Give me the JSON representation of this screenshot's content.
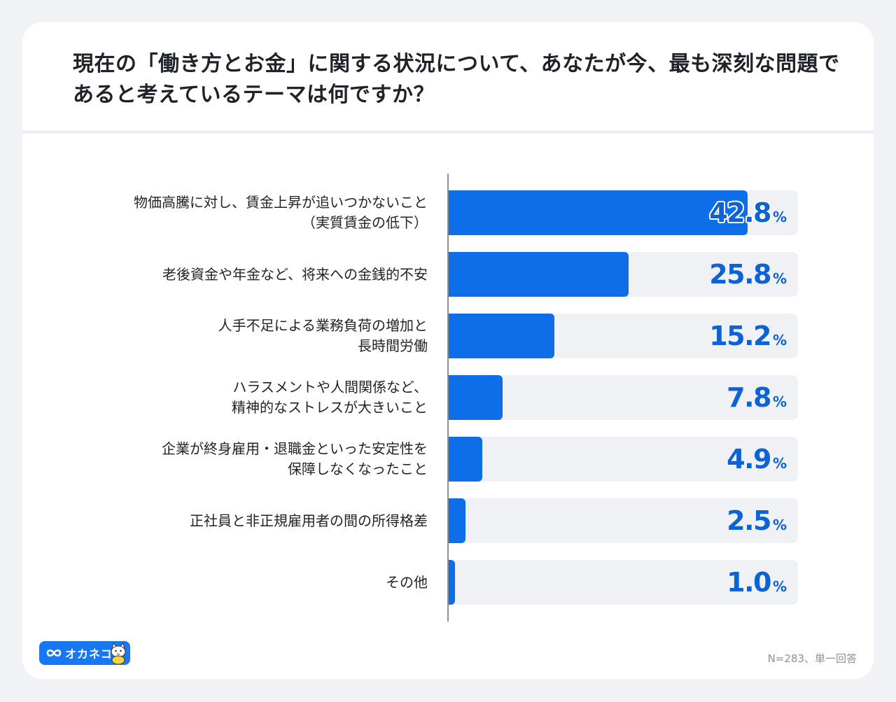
{
  "title": "現在の「働き方とお金」に関する状況について、あなたが今、最も深刻な問題であると考えているテーマは何ですか？",
  "chart_data": {
    "type": "bar",
    "orientation": "horizontal",
    "categories": [
      [
        "物価高騰に対し、賃金上昇が追いつかないこと",
        "（実質賃金の低下）"
      ],
      [
        "老後資金や年金など、将来への金銭的不安"
      ],
      [
        "人手不足による業務負荷の増加と",
        "長時間労働"
      ],
      [
        "ハラスメントや人間関係など、",
        "精神的なストレスが大きいこと"
      ],
      [
        "企業が終身雇用・退職金といった安定性を",
        "保障しなくなったこと"
      ],
      [
        "正社員と非正規雇用者の間の所得格差"
      ],
      [
        "その他"
      ]
    ],
    "values": [
      42.8,
      25.8,
      15.2,
      7.8,
      4.9,
      2.5,
      1.0
    ],
    "value_labels": [
      "42.8",
      "25.8",
      "15.2",
      "7.8",
      "4.9",
      "2.5",
      "1.0"
    ],
    "unit": "%",
    "xlim": [
      0,
      50
    ],
    "xlabel": "",
    "ylabel": "",
    "grid": false,
    "legend": "none"
  },
  "colors": {
    "bar": "#0d6ee8",
    "value_text": "#0d63d6",
    "track": "#eff1f4"
  },
  "logo": {
    "text": "オカネコ",
    "icon": "infinity-icon",
    "mascot": "cat-mascot-icon",
    "color": "#1877f2"
  },
  "note": "N=283、単一回答"
}
